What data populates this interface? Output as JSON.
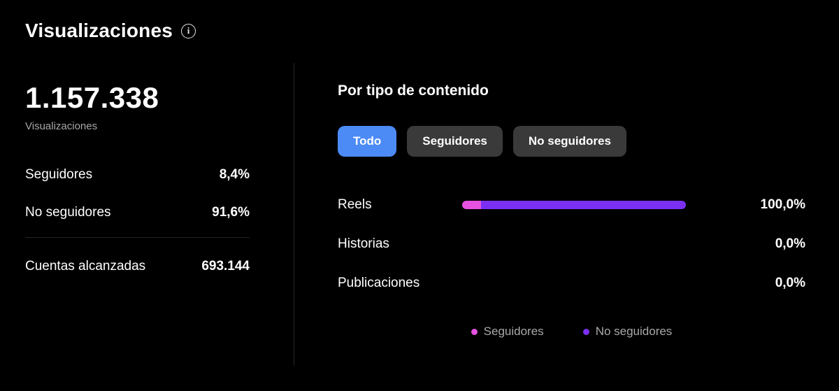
{
  "colors": {
    "background": "#000000",
    "accent_blue": "#4c8bf5",
    "pill_gray": "#3a3a3a",
    "pink": "#e552e0",
    "purple": "#7b2ff2",
    "muted_text": "#a8a8a8",
    "divider": "#262626"
  },
  "header": {
    "title": "Visualizaciones"
  },
  "summary": {
    "total": "1.157.338",
    "total_label": "Visualizaciones",
    "rows": [
      {
        "label": "Seguidores",
        "value": "8,4%"
      },
      {
        "label": "No seguidores",
        "value": "91,6%"
      }
    ],
    "reach": {
      "label": "Cuentas alcanzadas",
      "value": "693.144"
    }
  },
  "content_breakdown": {
    "title": "Por tipo de contenido",
    "tabs": [
      {
        "label": "Todo",
        "active": true
      },
      {
        "label": "Seguidores",
        "active": false
      },
      {
        "label": "No seguidores",
        "active": false
      }
    ],
    "rows": [
      {
        "label": "Reels",
        "value": "100,0%",
        "segments": [
          {
            "color": "#e552e0",
            "pct": 8.4
          },
          {
            "color": "#7b2ff2",
            "pct": 91.6
          }
        ]
      },
      {
        "label": "Historias",
        "value": "0,0%",
        "segments": []
      },
      {
        "label": "Publicaciones",
        "value": "0,0%",
        "segments": []
      }
    ],
    "legend": [
      {
        "label": "Seguidores",
        "color": "#e552e0"
      },
      {
        "label": "No seguidores",
        "color": "#7b2ff2"
      }
    ]
  }
}
